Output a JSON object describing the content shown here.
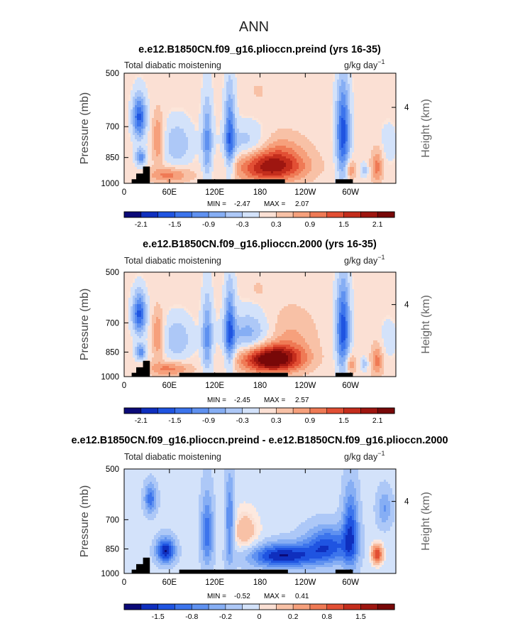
{
  "title": "ANN",
  "chart_data": [
    {
      "type": "heatmap",
      "title": "e.e12.B1850CN.f09_g16.plioccn.preind (yrs 16-35)",
      "left_label": "Total diabatic moistening",
      "units": "g/kg day",
      "units_exp": "−1",
      "ylabel": "Pressure (mb)",
      "ylabel_right": "Height (km)",
      "x_ticks": [
        "0",
        "60E",
        "120E",
        "180",
        "120W",
        "60W"
      ],
      "y_ticks": [
        "500",
        "700",
        "850",
        "1000"
      ],
      "y_right_ticks": [
        "4"
      ],
      "xlim": [
        0,
        360
      ],
      "ylim": [
        1000,
        500
      ],
      "stats": {
        "min_label": "MIN =",
        "min": "-2.47",
        "max_label": "MAX =",
        "max": "2.07"
      },
      "colorbar": {
        "colors": [
          "#0b0a78",
          "#0f2fbe",
          "#1f54e1",
          "#3c74ec",
          "#5f91f0",
          "#86aef4",
          "#adc8f7",
          "#d3e2fa",
          "#fbe0d4",
          "#f8c1a6",
          "#f6a07c",
          "#ef7a55",
          "#e24f34",
          "#c42d1c",
          "#9e1610",
          "#780808"
        ],
        "tick_labels": [
          "-2.1",
          "-1.5",
          "-0.9",
          "-0.3",
          "0.3",
          "0.9",
          "1.5",
          "2.1"
        ]
      },
      "features": [
        {
          "kind": "neg",
          "lon": 20,
          "p": 660,
          "rx": 9,
          "rp": 90,
          "mag": 1.7
        },
        {
          "kind": "neg",
          "lon": 22,
          "p": 850,
          "rx": 7,
          "rp": 45,
          "mag": 1.2
        },
        {
          "kind": "pos",
          "lon": 45,
          "p": 760,
          "rx": 8,
          "rp": 120,
          "mag": 0.9
        },
        {
          "kind": "neg",
          "lon": 70,
          "p": 780,
          "rx": 20,
          "rp": 110,
          "mag": 0.7
        },
        {
          "kind": "pos",
          "lon": 60,
          "p": 950,
          "rx": 28,
          "rp": 45,
          "mag": 0.9
        },
        {
          "kind": "neg",
          "lon": 110,
          "p": 770,
          "rx": 7,
          "rp": 200,
          "mag": 1.1
        },
        {
          "kind": "neg",
          "lon": 140,
          "p": 740,
          "rx": 7,
          "rp": 210,
          "mag": 1.4
        },
        {
          "kind": "neg",
          "lon": 165,
          "p": 780,
          "rx": 30,
          "rp": 90,
          "mag": 0.8
        },
        {
          "kind": "pos",
          "lon": 178,
          "p": 560,
          "rx": 9,
          "rp": 30,
          "mag": 0.3
        },
        {
          "kind": "pos",
          "lon": 195,
          "p": 900,
          "rx": 45,
          "rp": 90,
          "mag": 1.9
        },
        {
          "kind": "pos",
          "lon": 200,
          "p": 790,
          "rx": 40,
          "rp": 90,
          "mag": 0.5
        },
        {
          "kind": "neg",
          "lon": 290,
          "p": 730,
          "rx": 9,
          "rp": 220,
          "mag": 1.8
        },
        {
          "kind": "pos",
          "lon": 300,
          "p": 920,
          "rx": 7,
          "rp": 60,
          "mag": 0.8
        },
        {
          "kind": "neg",
          "lon": 318,
          "p": 920,
          "rx": 5,
          "rp": 40,
          "mag": 0.6
        },
        {
          "kind": "pos",
          "lon": 335,
          "p": 900,
          "rx": 8,
          "rp": 100,
          "mag": 0.9
        },
        {
          "kind": "neg",
          "lon": 350,
          "p": 780,
          "rx": 12,
          "rp": 100,
          "mag": 0.3
        }
      ],
      "topography": [
        [
          10,
          1000
        ],
        [
          10,
          975
        ],
        [
          16,
          975
        ],
        [
          16,
          940
        ],
        [
          25,
          940
        ],
        [
          25,
          900
        ],
        [
          34,
          900
        ],
        [
          34,
          1000
        ],
        [
          280,
          1000
        ],
        [
          280,
          975
        ],
        [
          303,
          975
        ],
        [
          303,
          1000
        ]
      ],
      "land_blocks": [
        [
          97,
          213
        ]
      ]
    },
    {
      "type": "heatmap",
      "title": "e.e12.B1850CN.f09_g16.plioccn.2000 (yrs 16-35)",
      "left_label": "Total diabatic moistening",
      "units": "g/kg day",
      "units_exp": "−1",
      "ylabel": "Pressure (mb)",
      "ylabel_right": "Height (km)",
      "x_ticks": [
        "0",
        "60E",
        "120E",
        "180",
        "120W",
        "60W"
      ],
      "y_ticks": [
        "500",
        "700",
        "850",
        "1000"
      ],
      "y_right_ticks": [
        "4"
      ],
      "xlim": [
        0,
        360
      ],
      "ylim": [
        1000,
        500
      ],
      "stats": {
        "min_label": "MIN =",
        "min": "-2.45",
        "max_label": "MAX =",
        "max": "2.57"
      },
      "colorbar": {
        "colors": [
          "#0b0a78",
          "#0f2fbe",
          "#1f54e1",
          "#3c74ec",
          "#5f91f0",
          "#86aef4",
          "#adc8f7",
          "#d3e2fa",
          "#fbe0d4",
          "#f8c1a6",
          "#f6a07c",
          "#ef7a55",
          "#e24f34",
          "#c42d1c",
          "#9e1610",
          "#780808"
        ],
        "tick_labels": [
          "-2.1",
          "-1.5",
          "-0.9",
          "-0.3",
          "0.3",
          "0.9",
          "1.5",
          "2.1"
        ]
      },
      "features": [
        {
          "kind": "neg",
          "lon": 20,
          "p": 660,
          "rx": 9,
          "rp": 90,
          "mag": 1.7
        },
        {
          "kind": "neg",
          "lon": 22,
          "p": 850,
          "rx": 7,
          "rp": 45,
          "mag": 1.2
        },
        {
          "kind": "pos",
          "lon": 45,
          "p": 760,
          "rx": 8,
          "rp": 120,
          "mag": 0.9
        },
        {
          "kind": "neg",
          "lon": 70,
          "p": 780,
          "rx": 20,
          "rp": 110,
          "mag": 0.7
        },
        {
          "kind": "pos",
          "lon": 60,
          "p": 950,
          "rx": 28,
          "rp": 45,
          "mag": 0.9
        },
        {
          "kind": "neg",
          "lon": 110,
          "p": 770,
          "rx": 7,
          "rp": 200,
          "mag": 1.1
        },
        {
          "kind": "neg",
          "lon": 140,
          "p": 740,
          "rx": 7,
          "rp": 210,
          "mag": 1.4
        },
        {
          "kind": "neg",
          "lon": 165,
          "p": 760,
          "rx": 30,
          "rp": 110,
          "mag": 0.9
        },
        {
          "kind": "pos",
          "lon": 178,
          "p": 560,
          "rx": 9,
          "rp": 30,
          "mag": 0.3
        },
        {
          "kind": "pos",
          "lon": 195,
          "p": 890,
          "rx": 40,
          "rp": 80,
          "mag": 2.5
        },
        {
          "kind": "pos",
          "lon": 220,
          "p": 760,
          "rx": 35,
          "rp": 140,
          "mag": 0.5
        },
        {
          "kind": "neg",
          "lon": 290,
          "p": 730,
          "rx": 9,
          "rp": 220,
          "mag": 1.8
        },
        {
          "kind": "pos",
          "lon": 300,
          "p": 920,
          "rx": 7,
          "rp": 60,
          "mag": 0.8
        },
        {
          "kind": "neg",
          "lon": 318,
          "p": 920,
          "rx": 5,
          "rp": 40,
          "mag": 0.6
        },
        {
          "kind": "pos",
          "lon": 335,
          "p": 900,
          "rx": 8,
          "rp": 100,
          "mag": 0.9
        },
        {
          "kind": "neg",
          "lon": 350,
          "p": 780,
          "rx": 12,
          "rp": 100,
          "mag": 0.3
        }
      ],
      "topography": [
        [
          10,
          1000
        ],
        [
          10,
          975
        ],
        [
          16,
          975
        ],
        [
          16,
          940
        ],
        [
          25,
          940
        ],
        [
          25,
          900
        ],
        [
          34,
          900
        ],
        [
          34,
          1000
        ],
        [
          280,
          1000
        ],
        [
          280,
          975
        ],
        [
          303,
          975
        ],
        [
          303,
          1000
        ]
      ],
      "land_blocks": [
        [
          73,
          217
        ]
      ]
    },
    {
      "type": "heatmap",
      "title": "e.e12.B1850CN.f09_g16.plioccn.preind - e.e12.B1850CN.f09_g16.plioccn.2000",
      "left_label": "Total diabatic moistening",
      "units": "g/kg day",
      "units_exp": "−1",
      "ylabel": "Pressure (mb)",
      "ylabel_right": "Height (km)",
      "x_ticks": [
        "0",
        "60E",
        "120E",
        "180",
        "120W",
        "60W"
      ],
      "y_ticks": [
        "500",
        "700",
        "850",
        "1000"
      ],
      "y_right_ticks": [
        "4"
      ],
      "xlim": [
        0,
        360
      ],
      "ylim": [
        1000,
        500
      ],
      "stats": {
        "min_label": "MIN =",
        "min": "-0.52",
        "max_label": "MAX =",
        "max": "0.41"
      },
      "colorbar": {
        "colors": [
          "#0b0a78",
          "#0f2fbe",
          "#1f54e1",
          "#3c74ec",
          "#5f91f0",
          "#86aef4",
          "#adc8f7",
          "#d3e2fa",
          "#fbe0d4",
          "#f8c1a6",
          "#f6a07c",
          "#ef7a55",
          "#e24f34",
          "#c42d1c",
          "#9e1610",
          "#780808"
        ],
        "tick_labels": [
          "-1.5",
          "-0.8",
          "-0.2",
          "0",
          "0.2",
          "0.8",
          "1.5"
        ]
      },
      "features": [
        {
          "kind": "neg",
          "lon": 35,
          "p": 610,
          "rx": 8,
          "rp": 60,
          "mag": 0.25
        },
        {
          "kind": "neg",
          "lon": 55,
          "p": 860,
          "rx": 12,
          "rp": 70,
          "mag": 0.4
        },
        {
          "kind": "neg",
          "lon": 110,
          "p": 760,
          "rx": 8,
          "rp": 180,
          "mag": 0.25
        },
        {
          "kind": "neg",
          "lon": 140,
          "p": 720,
          "rx": 6,
          "rp": 200,
          "mag": 0.25
        },
        {
          "kind": "pos",
          "lon": 160,
          "p": 760,
          "rx": 20,
          "rp": 120,
          "mag": 0.15
        },
        {
          "kind": "neg",
          "lon": 210,
          "p": 890,
          "rx": 45,
          "rp": 70,
          "mag": 0.4
        },
        {
          "kind": "neg",
          "lon": 270,
          "p": 830,
          "rx": 30,
          "rp": 100,
          "mag": 0.3
        },
        {
          "kind": "neg",
          "lon": 300,
          "p": 760,
          "rx": 10,
          "rp": 200,
          "mag": 0.3
        },
        {
          "kind": "pos",
          "lon": 335,
          "p": 880,
          "rx": 8,
          "rp": 60,
          "mag": 0.35
        },
        {
          "kind": "neg",
          "lon": 345,
          "p": 650,
          "rx": 10,
          "rp": 80,
          "mag": 0.15
        }
      ],
      "topography": [
        [
          10,
          1000
        ],
        [
          10,
          975
        ],
        [
          16,
          975
        ],
        [
          16,
          940
        ],
        [
          25,
          940
        ],
        [
          25,
          900
        ],
        [
          34,
          900
        ],
        [
          34,
          1000
        ],
        [
          280,
          1000
        ],
        [
          280,
          975
        ],
        [
          303,
          975
        ],
        [
          303,
          1000
        ]
      ],
      "land_blocks": [
        [
          73,
          217
        ]
      ]
    }
  ]
}
